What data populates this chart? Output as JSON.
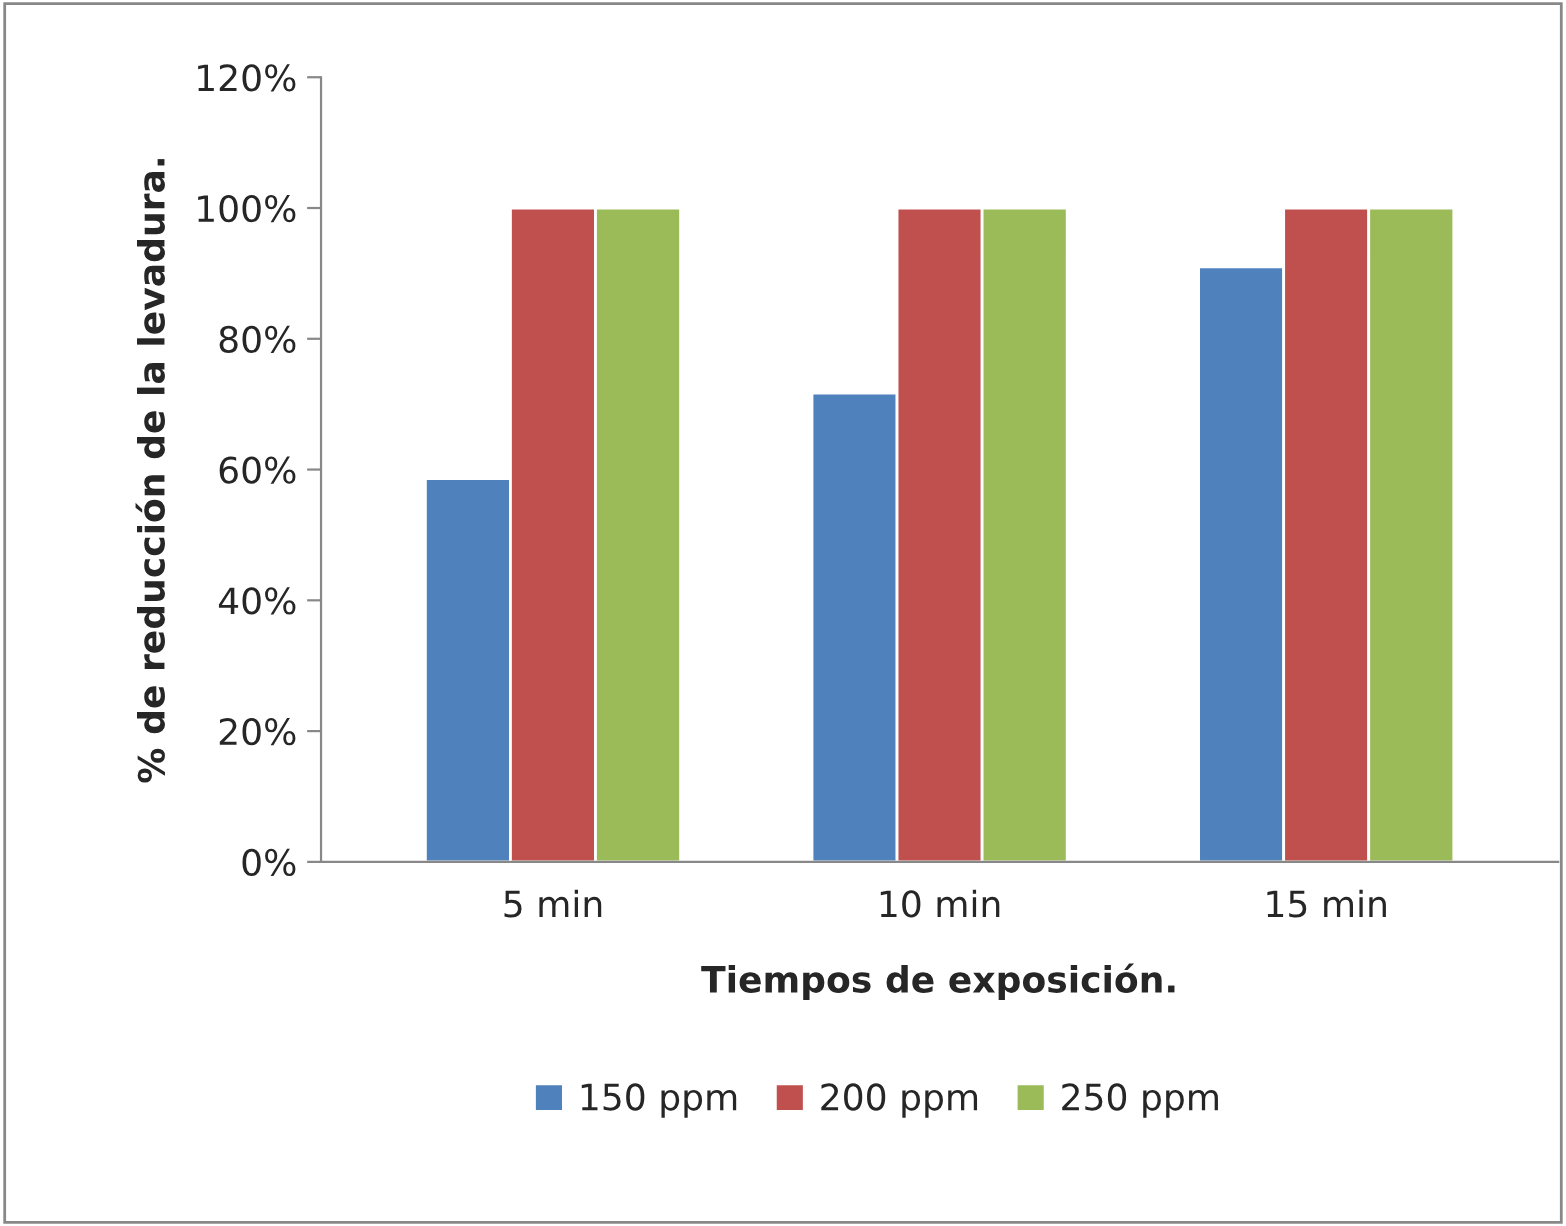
{
  "chart_data": {
    "type": "bar",
    "xlabel": "Tiempos de exposición.",
    "ylabel": "% de reducción de la levadura.",
    "categories": [
      "5 min",
      "10 min",
      "15 min"
    ],
    "series": [
      {
        "name": "150 ppm",
        "color": "#4f81bd",
        "values": [
          58.6,
          71.7,
          91.0
        ]
      },
      {
        "name": "200 ppm",
        "color": "#c0504d",
        "values": [
          100,
          100,
          100
        ]
      },
      {
        "name": "250 ppm",
        "color": "#9bbb59",
        "values": [
          100,
          100,
          100
        ]
      }
    ],
    "ylim": [
      0,
      120
    ],
    "yticks": [
      {
        "value": 0,
        "label": "0%"
      },
      {
        "value": 20,
        "label": "20%"
      },
      {
        "value": 40,
        "label": "40%"
      },
      {
        "value": 60,
        "label": "60%"
      },
      {
        "value": 80,
        "label": "80%"
      },
      {
        "value": 100,
        "label": "100%"
      },
      {
        "value": 120,
        "label": "120%"
      }
    ],
    "grid": false,
    "legend": "bottom"
  }
}
